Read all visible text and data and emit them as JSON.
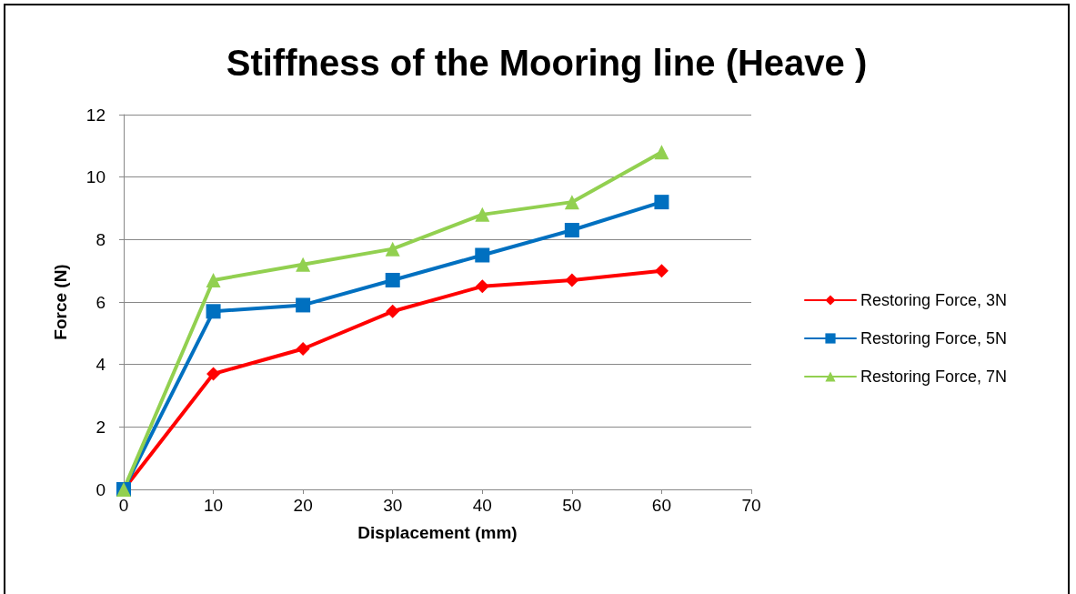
{
  "chart_data": {
    "type": "line",
    "title": "Stiffness of the Mooring line (Heave )",
    "xlabel": "Displacement (mm)",
    "ylabel": "Force (N)",
    "x": [
      0,
      10,
      20,
      30,
      40,
      50,
      60
    ],
    "series": [
      {
        "name": "Restoring Force, 3N",
        "color": "#ff0000",
        "marker": "diamond",
        "values": [
          0,
          3.7,
          4.5,
          5.7,
          6.5,
          6.7,
          7.0
        ]
      },
      {
        "name": "Restoring Force, 5N",
        "color": "#0070c0",
        "marker": "square",
        "values": [
          0,
          5.7,
          5.9,
          6.7,
          7.5,
          8.3,
          9.2
        ]
      },
      {
        "name": "Restoring Force, 7N",
        "color": "#92d050",
        "marker": "triangle",
        "values": [
          0,
          6.7,
          7.2,
          7.7,
          8.8,
          9.2,
          10.8
        ]
      }
    ],
    "xlim": [
      0,
      70
    ],
    "xticks": [
      0,
      10,
      20,
      30,
      40,
      50,
      60,
      70
    ],
    "ylim": [
      0,
      12
    ],
    "yticks": [
      0,
      2,
      4,
      6,
      8,
      10,
      12
    ],
    "grid": "y",
    "legend": "right",
    "line_style": "solid"
  }
}
